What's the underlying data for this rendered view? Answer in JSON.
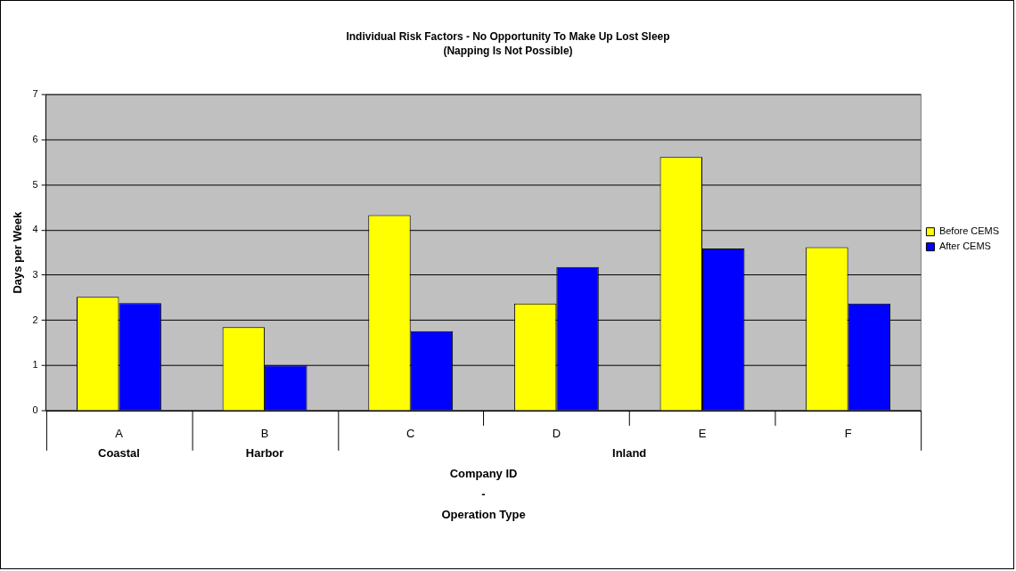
{
  "chart_data": {
    "type": "bar",
    "title": "Individual Risk Factors - No Opportunity To Make Up Lost Sleep\n(Napping Is Not Possible)",
    "xlabel": "Company ID\n-\nOperation Type",
    "ylabel": "Days per Week",
    "categories": [
      "A",
      "B",
      "C",
      "D",
      "E",
      "F"
    ],
    "series": [
      {
        "name": "Before CEMS",
        "color": "#ffff00",
        "values": [
          2.52,
          1.85,
          4.33,
          2.37,
          5.62,
          3.62
        ]
      },
      {
        "name": "After CEMS",
        "color": "#0000ff",
        "values": [
          2.38,
          1.0,
          1.76,
          3.18,
          3.59,
          2.37
        ]
      }
    ],
    "ylim": [
      0,
      7
    ],
    "yticks": [
      0,
      1,
      2,
      3,
      4,
      5,
      6,
      7
    ],
    "grid": "y",
    "legend": "right",
    "annotations": [
      "Coastal",
      "Harbor",
      "Inland"
    ]
  }
}
